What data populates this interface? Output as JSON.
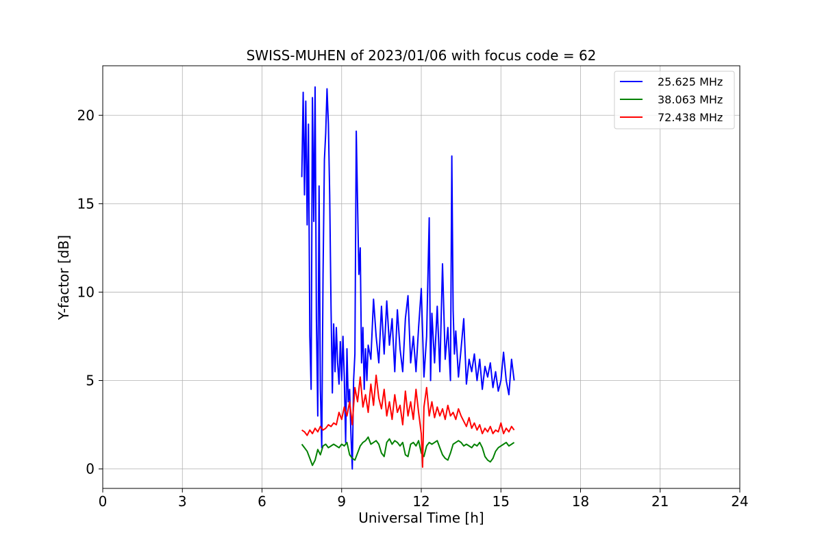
{
  "chart_data": {
    "type": "line",
    "title": "SWISS-MUHEN of 2023/01/06 with focus code = 62",
    "xlabel": "Universal Time [h]",
    "ylabel": "Y-factor [dB]",
    "xlim": [
      0,
      24
    ],
    "ylim": [
      -1.1,
      22.8
    ],
    "x_ticks": [
      0,
      3,
      6,
      9,
      12,
      15,
      18,
      21,
      24
    ],
    "y_ticks": [
      0,
      5,
      10,
      15,
      20
    ],
    "grid": true,
    "legend_position": "top-right",
    "series": [
      {
        "name": "25.625 MHz",
        "color": "#0000ff",
        "x": [
          7.5,
          7.55,
          7.6,
          7.65,
          7.7,
          7.75,
          7.8,
          7.85,
          7.9,
          7.95,
          8.0,
          8.05,
          8.1,
          8.15,
          8.2,
          8.25,
          8.3,
          8.35,
          8.4,
          8.45,
          8.5,
          8.55,
          8.6,
          8.65,
          8.7,
          8.75,
          8.8,
          8.85,
          8.9,
          8.95,
          9.0,
          9.05,
          9.1,
          9.15,
          9.2,
          9.25,
          9.3,
          9.35,
          9.4,
          9.45,
          9.5,
          9.55,
          9.6,
          9.65,
          9.7,
          9.75,
          9.8,
          9.85,
          9.9,
          9.95,
          10.0,
          10.1,
          10.2,
          10.3,
          10.4,
          10.5,
          10.6,
          10.7,
          10.8,
          10.9,
          11.0,
          11.1,
          11.2,
          11.3,
          11.4,
          11.5,
          11.6,
          11.7,
          11.8,
          11.9,
          12.0,
          12.1,
          12.2,
          12.3,
          12.35,
          12.4,
          12.5,
          12.6,
          12.7,
          12.8,
          12.9,
          13.0,
          13.1,
          13.15,
          13.2,
          13.25,
          13.3,
          13.4,
          13.5,
          13.6,
          13.7,
          13.8,
          13.9,
          14.0,
          14.1,
          14.2,
          14.3,
          14.4,
          14.5,
          14.6,
          14.7,
          14.8,
          14.9,
          15.0,
          15.1,
          15.2,
          15.3,
          15.4,
          15.5
        ],
        "y": [
          16.5,
          21.3,
          15.5,
          20.8,
          13.8,
          19.5,
          7.5,
          4.5,
          21.0,
          14.0,
          21.6,
          8.5,
          3.0,
          16.0,
          4.5,
          1.2,
          11.0,
          17.5,
          19.0,
          21.5,
          19.5,
          15.5,
          9.0,
          4.3,
          8.2,
          5.5,
          8.0,
          6.0,
          4.8,
          7.2,
          5.0,
          7.5,
          5.2,
          1.5,
          6.8,
          3.8,
          4.5,
          2.0,
          0.0,
          5.0,
          6.5,
          19.1,
          15.0,
          11.0,
          12.5,
          6.0,
          8.0,
          4.5,
          6.8,
          5.0,
          7.0,
          6.2,
          9.6,
          7.5,
          6.0,
          9.2,
          6.5,
          9.5,
          7.0,
          8.5,
          5.5,
          9.0,
          6.8,
          5.5,
          8.5,
          9.8,
          6.0,
          7.5,
          5.5,
          8.0,
          10.2,
          5.2,
          7.5,
          14.2,
          5.0,
          8.8,
          6.0,
          9.2,
          5.5,
          11.6,
          6.2,
          8.0,
          5.0,
          17.7,
          9.0,
          6.5,
          7.8,
          5.2,
          6.8,
          8.5,
          4.8,
          6.2,
          5.5,
          6.5,
          5.0,
          6.2,
          4.5,
          5.8,
          5.2,
          6.0,
          4.6,
          5.5,
          4.4,
          5.0,
          6.6,
          5.0,
          4.2,
          6.2,
          5.0
        ]
      },
      {
        "name": "38.063 MHz",
        "color": "#008000",
        "x": [
          7.5,
          7.6,
          7.7,
          7.8,
          7.9,
          8.0,
          8.1,
          8.2,
          8.3,
          8.4,
          8.5,
          8.6,
          8.7,
          8.8,
          8.9,
          9.0,
          9.1,
          9.2,
          9.3,
          9.4,
          9.5,
          9.6,
          9.7,
          9.8,
          9.9,
          10.0,
          10.1,
          10.2,
          10.3,
          10.4,
          10.5,
          10.6,
          10.7,
          10.8,
          10.9,
          11.0,
          11.1,
          11.2,
          11.3,
          11.4,
          11.5,
          11.6,
          11.7,
          11.8,
          11.9,
          12.0,
          12.1,
          12.2,
          12.3,
          12.4,
          12.5,
          12.6,
          12.7,
          12.8,
          12.9,
          13.0,
          13.1,
          13.2,
          13.3,
          13.4,
          13.5,
          13.6,
          13.7,
          13.8,
          13.9,
          14.0,
          14.1,
          14.2,
          14.3,
          14.4,
          14.5,
          14.6,
          14.7,
          14.8,
          14.9,
          15.0,
          15.1,
          15.2,
          15.3,
          15.4,
          15.5
        ],
        "y": [
          1.4,
          1.2,
          1.0,
          0.6,
          0.2,
          0.5,
          1.1,
          0.8,
          1.3,
          1.4,
          1.2,
          1.3,
          1.4,
          1.3,
          1.2,
          1.4,
          1.3,
          1.5,
          0.8,
          0.6,
          0.5,
          0.9,
          1.3,
          1.5,
          1.6,
          1.8,
          1.4,
          1.5,
          1.6,
          1.4,
          0.9,
          0.7,
          1.5,
          1.7,
          1.4,
          1.6,
          1.5,
          1.3,
          1.5,
          0.8,
          0.7,
          1.4,
          1.5,
          1.3,
          1.6,
          0.9,
          0.7,
          1.3,
          1.5,
          1.4,
          1.5,
          1.6,
          1.2,
          0.8,
          0.6,
          0.5,
          0.9,
          1.4,
          1.5,
          1.6,
          1.5,
          1.3,
          1.4,
          1.3,
          1.2,
          1.4,
          1.3,
          1.5,
          1.2,
          0.7,
          0.5,
          0.4,
          0.6,
          1.0,
          1.2,
          1.3,
          1.4,
          1.5,
          1.3,
          1.4,
          1.5
        ]
      },
      {
        "name": "72.438 MHz",
        "color": "#ff0000",
        "x": [
          7.5,
          7.6,
          7.7,
          7.8,
          7.9,
          8.0,
          8.1,
          8.2,
          8.3,
          8.4,
          8.5,
          8.6,
          8.7,
          8.8,
          8.9,
          9.0,
          9.1,
          9.2,
          9.3,
          9.4,
          9.5,
          9.6,
          9.7,
          9.8,
          9.9,
          10.0,
          10.1,
          10.2,
          10.3,
          10.4,
          10.5,
          10.6,
          10.7,
          10.8,
          10.9,
          11.0,
          11.1,
          11.2,
          11.3,
          11.4,
          11.5,
          11.6,
          11.7,
          11.8,
          11.9,
          12.0,
          12.05,
          12.1,
          12.2,
          12.3,
          12.4,
          12.5,
          12.6,
          12.7,
          12.8,
          12.9,
          13.0,
          13.1,
          13.2,
          13.3,
          13.4,
          13.5,
          13.6,
          13.7,
          13.8,
          13.9,
          14.0,
          14.1,
          14.2,
          14.3,
          14.4,
          14.5,
          14.6,
          14.7,
          14.8,
          14.9,
          15.0,
          15.1,
          15.2,
          15.3,
          15.4,
          15.5
        ],
        "y": [
          2.2,
          2.1,
          1.9,
          2.2,
          2.0,
          2.3,
          2.1,
          2.4,
          2.2,
          2.3,
          2.5,
          2.4,
          2.6,
          2.5,
          3.2,
          2.8,
          3.5,
          3.0,
          3.8,
          2.5,
          4.6,
          3.8,
          5.2,
          3.5,
          4.2,
          3.2,
          4.8,
          3.6,
          5.3,
          4.0,
          3.4,
          4.5,
          3.0,
          3.8,
          2.8,
          4.2,
          3.2,
          3.6,
          2.5,
          4.4,
          3.0,
          3.8,
          2.8,
          4.5,
          3.2,
          2.0,
          0.1,
          3.5,
          4.6,
          3.0,
          3.8,
          2.9,
          3.5,
          3.0,
          3.4,
          2.8,
          3.6,
          3.0,
          3.2,
          2.8,
          3.4,
          3.0,
          2.7,
          2.4,
          2.9,
          2.3,
          2.6,
          2.2,
          2.5,
          2.0,
          2.3,
          2.1,
          2.4,
          2.0,
          2.2,
          2.1,
          2.6,
          2.0,
          2.3,
          2.1,
          2.4,
          2.2
        ]
      }
    ]
  }
}
